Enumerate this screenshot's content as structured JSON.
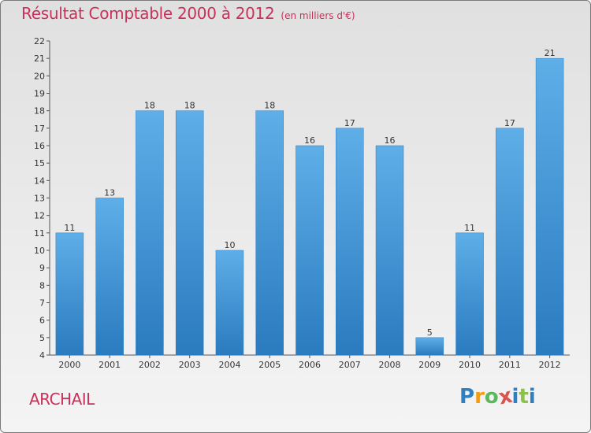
{
  "title": "Résultat Comptable 2000 à 2012",
  "subtitle": "(en milliers d'€)",
  "commune": "ARCHAIL",
  "logo": {
    "letters": [
      "P",
      "r",
      "o",
      "x",
      "i",
      "t",
      "i"
    ],
    "colors": [
      "#2f7fc1",
      "#f39c12",
      "#5cb85c",
      "#d9534f",
      "#2f7fc1",
      "#8bc34a",
      "#2f7fc1"
    ]
  },
  "colors": {
    "bar_top": "#5eaee8",
    "bar_bottom": "#2a7bbf",
    "accent": "#c8325a"
  },
  "chart_data": {
    "type": "bar",
    "title": "Résultat Comptable 2000 à 2012",
    "ylabel": "(en milliers d'€)",
    "xlabel": "",
    "categories": [
      "2000",
      "2001",
      "2002",
      "2003",
      "2004",
      "2005",
      "2006",
      "2007",
      "2008",
      "2009",
      "2010",
      "2011",
      "2012"
    ],
    "values": [
      11,
      13,
      18,
      18,
      10,
      18,
      16,
      17,
      16,
      5,
      11,
      17,
      21
    ],
    "ylim": [
      4,
      22
    ],
    "yticks": [
      4,
      5,
      6,
      7,
      8,
      9,
      10,
      11,
      12,
      13,
      14,
      15,
      16,
      17,
      18,
      19,
      20,
      21,
      22
    ],
    "grid": false
  }
}
